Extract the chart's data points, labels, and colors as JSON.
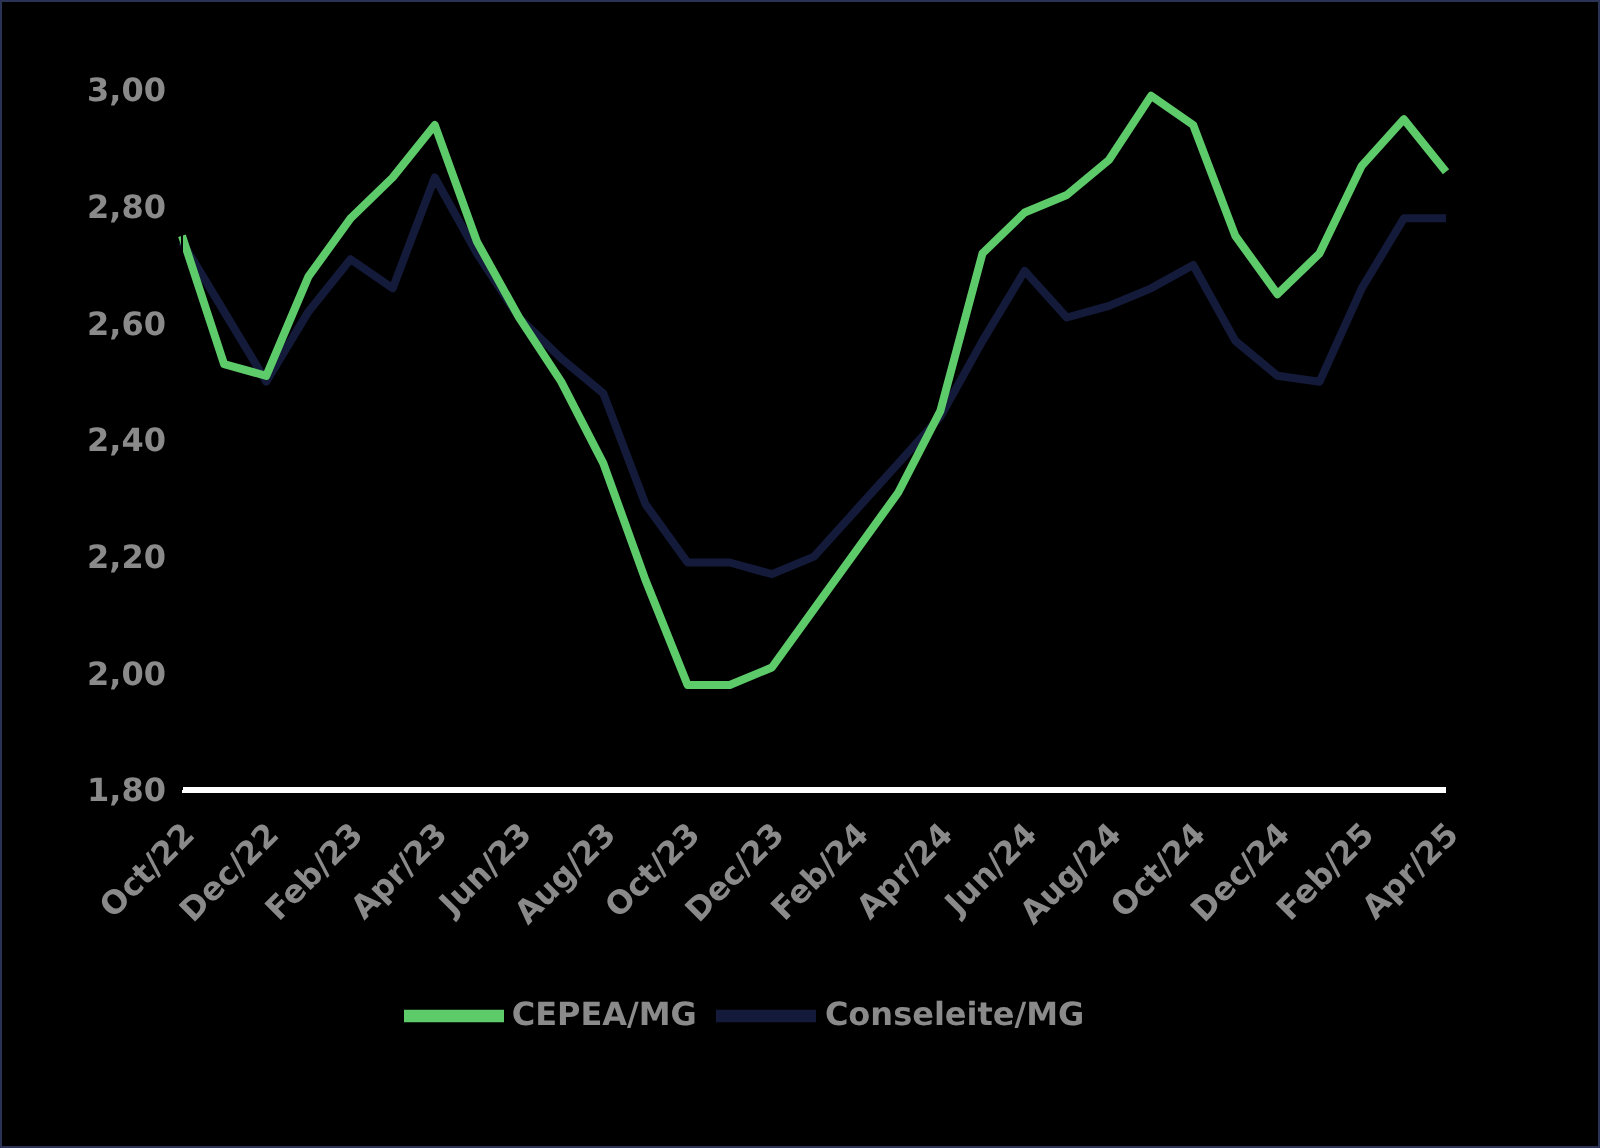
{
  "chart_data": {
    "type": "line",
    "categories": [
      "Oct/22",
      null,
      "Dec/22",
      null,
      "Feb/23",
      null,
      "Apr/23",
      null,
      "Jun/23",
      null,
      "Aug/23",
      null,
      "Oct/23",
      null,
      "Dec/23",
      null,
      "Feb/24",
      null,
      "Apr/24",
      null,
      "Jun/24",
      null,
      "Aug/24",
      null,
      "Oct/24",
      null,
      "Dec/24",
      null,
      "Feb/25",
      null,
      "Apr/25"
    ],
    "series": [
      {
        "name": "Conseleite/MG",
        "color": "#141a3a",
        "values": [
          2.74,
          2.62,
          2.5,
          2.62,
          2.71,
          2.66,
          2.85,
          2.72,
          2.61,
          2.54,
          2.48,
          2.29,
          2.19,
          2.19,
          2.17,
          2.2,
          2.28,
          2.36,
          2.44,
          2.57,
          2.69,
          2.61,
          2.63,
          2.66,
          2.7,
          2.57,
          2.51,
          2.5,
          2.66,
          2.78,
          2.78
        ]
      },
      {
        "name": "CEPEA/MG",
        "color": "#5ecb6a",
        "values": [
          2.75,
          2.53,
          2.51,
          2.68,
          2.78,
          2.85,
          2.94,
          2.74,
          2.61,
          2.5,
          2.36,
          2.16,
          1.98,
          1.98,
          2.01,
          2.11,
          2.21,
          2.31,
          2.45,
          2.72,
          2.79,
          2.82,
          2.88,
          2.99,
          2.94,
          2.75,
          2.65,
          2.72,
          2.87,
          2.95,
          2.86
        ]
      }
    ],
    "ylim": [
      1.8,
      3.0
    ],
    "yticks": [
      {
        "value": 1.8,
        "label": "1,80"
      },
      {
        "value": 2.0,
        "label": "2,00"
      },
      {
        "value": 2.2,
        "label": "2,20"
      },
      {
        "value": 2.4,
        "label": "2,40"
      },
      {
        "value": 2.6,
        "label": "2,60"
      },
      {
        "value": 2.8,
        "label": "2,80"
      },
      {
        "value": 3.0,
        "label": "3,00"
      }
    ],
    "grid": false,
    "legend": "bottom",
    "marker": "none",
    "line_style": "solid"
  }
}
